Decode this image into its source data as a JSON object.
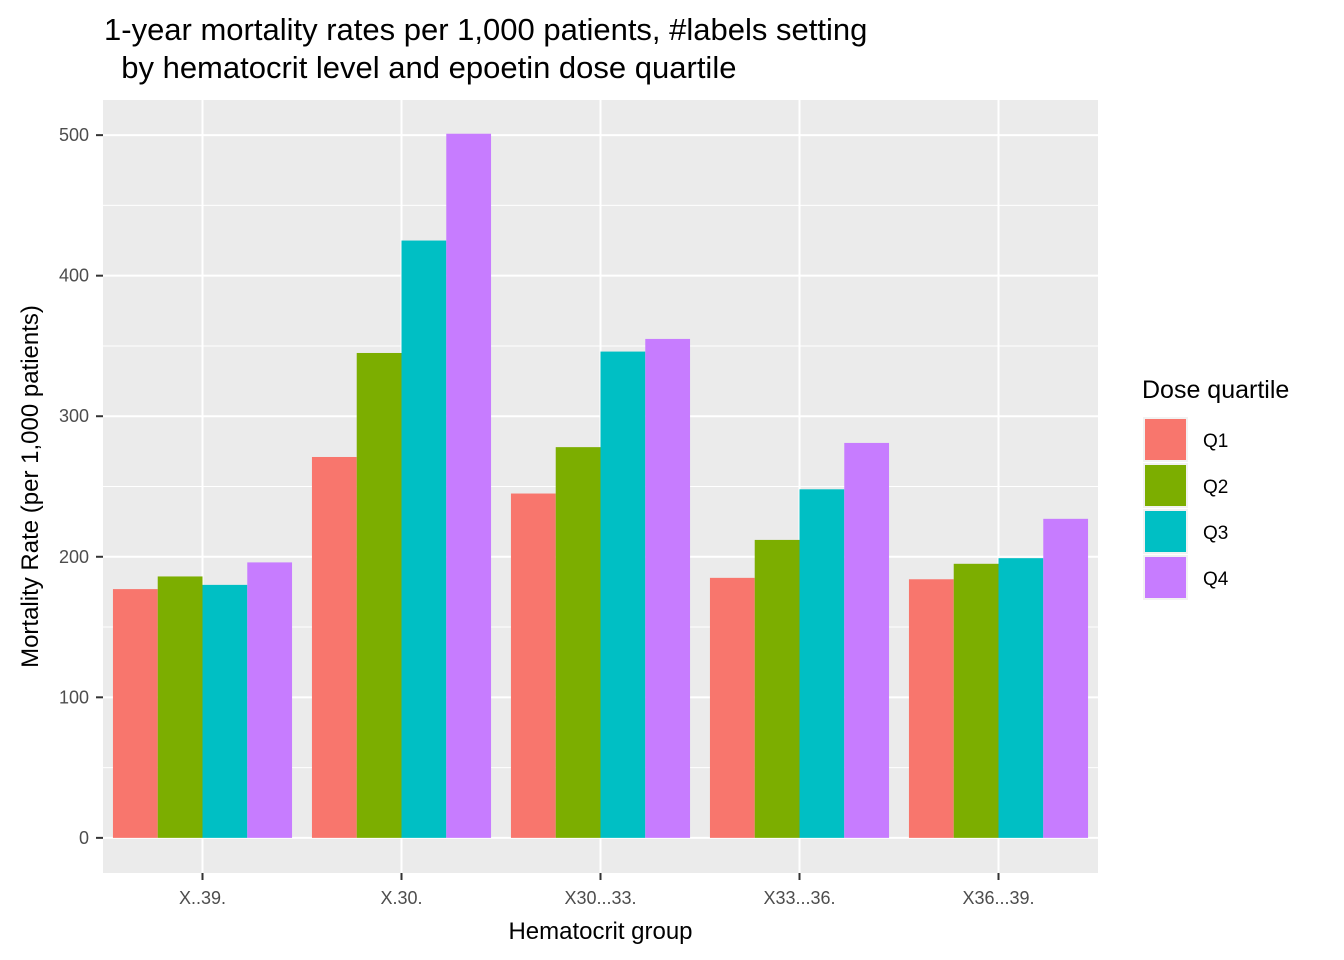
{
  "chart_data": {
    "type": "bar",
    "title": "1-year mortality rates per 1,000 patients, #labels setting",
    "subtitle": "  by hematocrit level and epoetin dose quartile",
    "xlabel": "Hematocrit group",
    "ylabel": "Mortality Rate (per 1,000 patients)",
    "categories": [
      "X..39.",
      "X.30.",
      "X30...33.",
      "X33...36.",
      "X36...39."
    ],
    "ylim": [
      -25,
      525
    ],
    "yticks": [
      0,
      100,
      200,
      300,
      400,
      500
    ],
    "yticks_labels": [
      "0",
      "100",
      "200",
      "300",
      "400",
      "500"
    ],
    "grid": true,
    "legend": {
      "title": "Dose quartile",
      "position": "right"
    },
    "series": [
      {
        "name": "Q1",
        "color": "#F8766D",
        "values": [
          177,
          271,
          245,
          185,
          184
        ]
      },
      {
        "name": "Q2",
        "color": "#7CAE00",
        "values": [
          186,
          345,
          278,
          212,
          195
        ]
      },
      {
        "name": "Q3",
        "color": "#00BFC4",
        "values": [
          180,
          425,
          346,
          248,
          199
        ]
      },
      {
        "name": "Q4",
        "color": "#C77CFF",
        "values": [
          196,
          501,
          355,
          281,
          227
        ]
      }
    ]
  }
}
